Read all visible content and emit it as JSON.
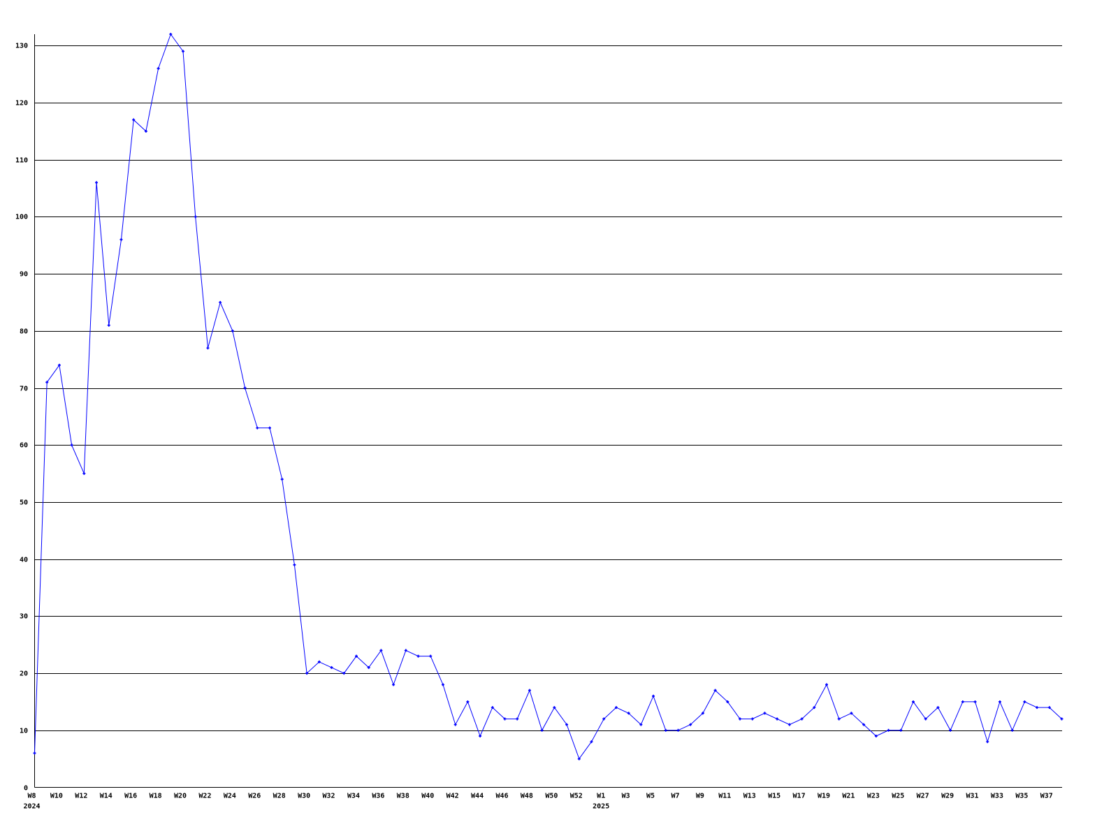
{
  "chart_data": {
    "type": "line",
    "title": "",
    "xlabel": "",
    "ylabel": "",
    "ylim": [
      0,
      132
    ],
    "yticks": [
      0,
      10,
      20,
      30,
      40,
      50,
      60,
      70,
      80,
      90,
      100,
      110,
      120,
      130
    ],
    "grid": "horizontal",
    "colors": {
      "series": "#0000ff",
      "grid": "#000000",
      "axis": "#000000"
    },
    "x": [
      "2024-W8",
      "2024-W9",
      "2024-W10",
      "2024-W11",
      "2024-W12",
      "2024-W13",
      "2024-W14",
      "2024-W15",
      "2024-W16",
      "2024-W17",
      "2024-W18",
      "2024-W19",
      "2024-W20",
      "2024-W21",
      "2024-W22",
      "2024-W23",
      "2024-W24",
      "2024-W25",
      "2024-W26",
      "2024-W27",
      "2024-W28",
      "2024-W29",
      "2024-W30",
      "2024-W31",
      "2024-W32",
      "2024-W33",
      "2024-W34",
      "2024-W35",
      "2024-W36",
      "2024-W37",
      "2024-W38",
      "2024-W39",
      "2024-W40",
      "2024-W41",
      "2024-W42",
      "2024-W43",
      "2024-W44",
      "2024-W45",
      "2024-W46",
      "2024-W47",
      "2024-W48",
      "2024-W49",
      "2024-W50",
      "2024-W51",
      "2024-W52",
      "2024-W53",
      "2025-W1",
      "2025-W2",
      "2025-W3",
      "2025-W4",
      "2025-W5",
      "2025-W6",
      "2025-W7",
      "2025-W8",
      "2025-W9",
      "2025-W10",
      "2025-W11",
      "2025-W12",
      "2025-W13",
      "2025-W14",
      "2025-W15",
      "2025-W16",
      "2025-W17",
      "2025-W18",
      "2025-W19",
      "2025-W20",
      "2025-W21",
      "2025-W22",
      "2025-W23",
      "2025-W24",
      "2025-W25",
      "2025-W26",
      "2025-W27",
      "2025-W28",
      "2025-W29",
      "2025-W30",
      "2025-W31",
      "2025-W32",
      "2025-W33",
      "2025-W34",
      "2025-W35",
      "2025-W36",
      "2025-W37",
      "2025-W38"
    ],
    "values": [
      6,
      71,
      74,
      60,
      55,
      106,
      81,
      96,
      117,
      115,
      126,
      132,
      129,
      100,
      77,
      85,
      80,
      70,
      63,
      63,
      54,
      39,
      20,
      22,
      21,
      20,
      23,
      21,
      24,
      18,
      24,
      23,
      23,
      18,
      11,
      15,
      9,
      14,
      12,
      12,
      17,
      10,
      14,
      11,
      5,
      8,
      12,
      14,
      13,
      11,
      16,
      10,
      10,
      11,
      13,
      17,
      15,
      12,
      12,
      13,
      12,
      11,
      12,
      14,
      18,
      12,
      13,
      11,
      9,
      10,
      10,
      15,
      12,
      14,
      10,
      15,
      15,
      8,
      15,
      10,
      15,
      14,
      14,
      12
    ],
    "xtick_labels": {
      "2024-W8": "W8",
      "2024-W10": "W10",
      "2024-W12": "W12",
      "2024-W14": "W14",
      "2024-W16": "W16",
      "2024-W18": "W18",
      "2024-W20": "W20",
      "2024-W22": "W22",
      "2024-W24": "W24",
      "2024-W26": "W26",
      "2024-W28": "W28",
      "2024-W30": "W30",
      "2024-W32": "W32",
      "2024-W34": "W34",
      "2024-W36": "W36",
      "2024-W38": "W38",
      "2024-W40": "W40",
      "2024-W42": "W42",
      "2024-W44": "W44",
      "2024-W46": "W46",
      "2024-W48": "W48",
      "2024-W50": "W50",
      "2024-W52": "W52",
      "2025-W1": "W1",
      "2025-W3": "W3",
      "2025-W5": "W5",
      "2025-W7": "W7",
      "2025-W9": "W9",
      "2025-W11": "W11",
      "2025-W13": "W13",
      "2025-W15": "W15",
      "2025-W17": "W17",
      "2025-W19": "W19",
      "2025-W21": "W21",
      "2025-W23": "W23",
      "2025-W25": "W25",
      "2025-W27": "W27",
      "2025-W29": "W29",
      "2025-W31": "W31",
      "2025-W33": "W33",
      "2025-W35": "W35",
      "2025-W37": "W37"
    },
    "year_labels": {
      "2024-W8": "2024",
      "2025-W1": "2025"
    }
  }
}
